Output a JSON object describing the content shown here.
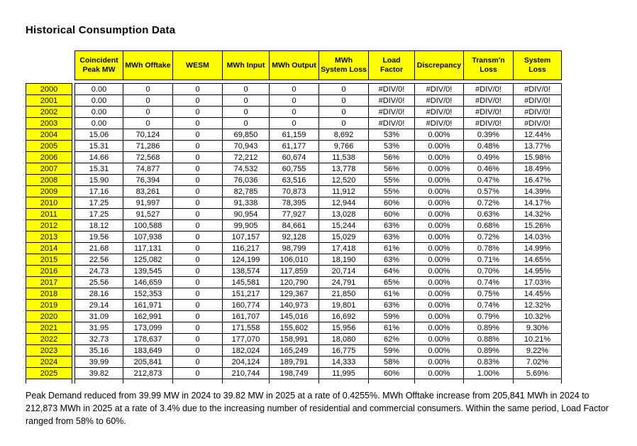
{
  "page": {
    "title": "Historical Consumption Data"
  },
  "colors": {
    "highlight_yellow": "#FFFF00",
    "border": "#000000",
    "text": "#000000",
    "background": "#FFFFFF"
  },
  "table": {
    "columns": [
      "Coincident Peak MW",
      "MWh Offtake",
      "WESM",
      "MWh Input",
      "MWh Output",
      "MWh System Loss",
      "Load Factor",
      "Discrepancy",
      "Transm'n Loss",
      "System Loss"
    ],
    "rows": [
      {
        "year": "2000",
        "values": [
          "0.00",
          "0",
          "0",
          "0",
          "0",
          "0",
          "#DIV/0!",
          "#DIV/0!",
          "#DIV/0!",
          "#DIV/0!"
        ]
      },
      {
        "year": "2001",
        "values": [
          "0.00",
          "0",
          "0",
          "0",
          "0",
          "0",
          "#DIV/0!",
          "#DIV/0!",
          "#DIV/0!",
          "#DIV/0!"
        ]
      },
      {
        "year": "2002",
        "values": [
          "0.00",
          "0",
          "0",
          "0",
          "0",
          "0",
          "#DIV/0!",
          "#DIV/0!",
          "#DIV/0!",
          "#DIV/0!"
        ]
      },
      {
        "year": "2003",
        "values": [
          "0.00",
          "0",
          "0",
          "0",
          "0",
          "0",
          "#DIV/0!",
          "#DIV/0!",
          "#DIV/0!",
          "#DIV/0!"
        ]
      },
      {
        "year": "2004",
        "values": [
          "15.06",
          "70,124",
          "0",
          "69,850",
          "61,159",
          "8,692",
          "53%",
          "0.00%",
          "0.39%",
          "12.44%"
        ]
      },
      {
        "year": "2005",
        "values": [
          "15.31",
          "71,286",
          "0",
          "70,943",
          "61,177",
          "9,766",
          "53%",
          "0.00%",
          "0.48%",
          "13.77%"
        ]
      },
      {
        "year": "2006",
        "values": [
          "14.66",
          "72,568",
          "0",
          "72,212",
          "60,674",
          "11,538",
          "56%",
          "0.00%",
          "0.49%",
          "15.98%"
        ]
      },
      {
        "year": "2007",
        "values": [
          "15.31",
          "74,877",
          "0",
          "74,532",
          "60,755",
          "13,778",
          "56%",
          "0.00%",
          "0.46%",
          "18.49%"
        ]
      },
      {
        "year": "2008",
        "values": [
          "15.90",
          "76,394",
          "0",
          "76,036",
          "63,516",
          "12,520",
          "55%",
          "0.00%",
          "0.47%",
          "16.47%"
        ]
      },
      {
        "year": "2009",
        "values": [
          "17.16",
          "83,261",
          "0",
          "82,785",
          "70,873",
          "11,912",
          "55%",
          "0.00%",
          "0.57%",
          "14.39%"
        ]
      },
      {
        "year": "2010",
        "values": [
          "17.25",
          "91,997",
          "0",
          "91,338",
          "78,395",
          "12,944",
          "60%",
          "0.00%",
          "0.72%",
          "14.17%"
        ]
      },
      {
        "year": "2011",
        "values": [
          "17.25",
          "91,527",
          "0",
          "90,954",
          "77,927",
          "13,028",
          "60%",
          "0.00%",
          "0.63%",
          "14.32%"
        ]
      },
      {
        "year": "2012",
        "values": [
          "18.12",
          "100,588",
          "0",
          "99,905",
          "84,661",
          "15,244",
          "63%",
          "0.00%",
          "0.68%",
          "15.26%"
        ]
      },
      {
        "year": "2013",
        "values": [
          "19.56",
          "107,938",
          "0",
          "107,157",
          "92,128",
          "15,029",
          "63%",
          "0.00%",
          "0.72%",
          "14.03%"
        ]
      },
      {
        "year": "2014",
        "values": [
          "21.68",
          "117,131",
          "0",
          "116,217",
          "98,799",
          "17,418",
          "61%",
          "0.00%",
          "0.78%",
          "14.99%"
        ]
      },
      {
        "year": "2015",
        "values": [
          "22.56",
          "125,082",
          "0",
          "124,199",
          "106,010",
          "18,190",
          "63%",
          "0.00%",
          "0.71%",
          "14.65%"
        ]
      },
      {
        "year": "2016",
        "values": [
          "24.73",
          "139,545",
          "0",
          "138,574",
          "117,859",
          "20,714",
          "64%",
          "0.00%",
          "0.70%",
          "14.95%"
        ]
      },
      {
        "year": "2017",
        "values": [
          "25.56",
          "146,659",
          "0",
          "145,581",
          "120,790",
          "24,791",
          "65%",
          "0.00%",
          "0.74%",
          "17.03%"
        ]
      },
      {
        "year": "2018",
        "values": [
          "28.16",
          "152,353",
          "0",
          "151,217",
          "129,367",
          "21,850",
          "61%",
          "0.00%",
          "0.75%",
          "14.45%"
        ]
      },
      {
        "year": "2019",
        "values": [
          "29.14",
          "161,971",
          "0",
          "160,774",
          "140,973",
          "19,801",
          "63%",
          "0.00%",
          "0.74%",
          "12.32%"
        ]
      },
      {
        "year": "2020",
        "values": [
          "31.09",
          "162,991",
          "0",
          "161,707",
          "145,016",
          "16,692",
          "59%",
          "0.00%",
          "0.79%",
          "10.32%"
        ]
      },
      {
        "year": "2021",
        "values": [
          "31.95",
          "173,099",
          "0",
          "171,558",
          "155,602",
          "15,956",
          "61%",
          "0.00%",
          "0.89%",
          "9.30%"
        ]
      },
      {
        "year": "2022",
        "values": [
          "32.73",
          "178,637",
          "0",
          "177,070",
          "158,991",
          "18,080",
          "62%",
          "0.00%",
          "0.88%",
          "10.21%"
        ]
      },
      {
        "year": "2023",
        "values": [
          "35.16",
          "183,649",
          "0",
          "182,024",
          "165,249",
          "16,775",
          "59%",
          "0.00%",
          "0.89%",
          "9.22%"
        ]
      },
      {
        "year": "2024",
        "values": [
          "39.99",
          "205,841",
          "0",
          "204,124",
          "189,791",
          "14,333",
          "58%",
          "0.00%",
          "0.83%",
          "7.02%"
        ]
      },
      {
        "year": "2025",
        "values": [
          "39.82",
          "212,873",
          "0",
          "210,744",
          "198,749",
          "11,995",
          "60%",
          "0.00%",
          "1.00%",
          "5.69%"
        ]
      }
    ]
  },
  "footer": {
    "note": "Peak Demand reduced from 39.99 MW in 2024 to 39.82 MW in 2025 at a rate of 0.4255%. MWh Offtake increase from 205,841 MWh in 2024 to 212,873 MWh in 2025 at a rate of 3.4% due to the increasing number of residential and commercial consumers. Within the same period, Load Factor ranged from 58% to 60%."
  }
}
